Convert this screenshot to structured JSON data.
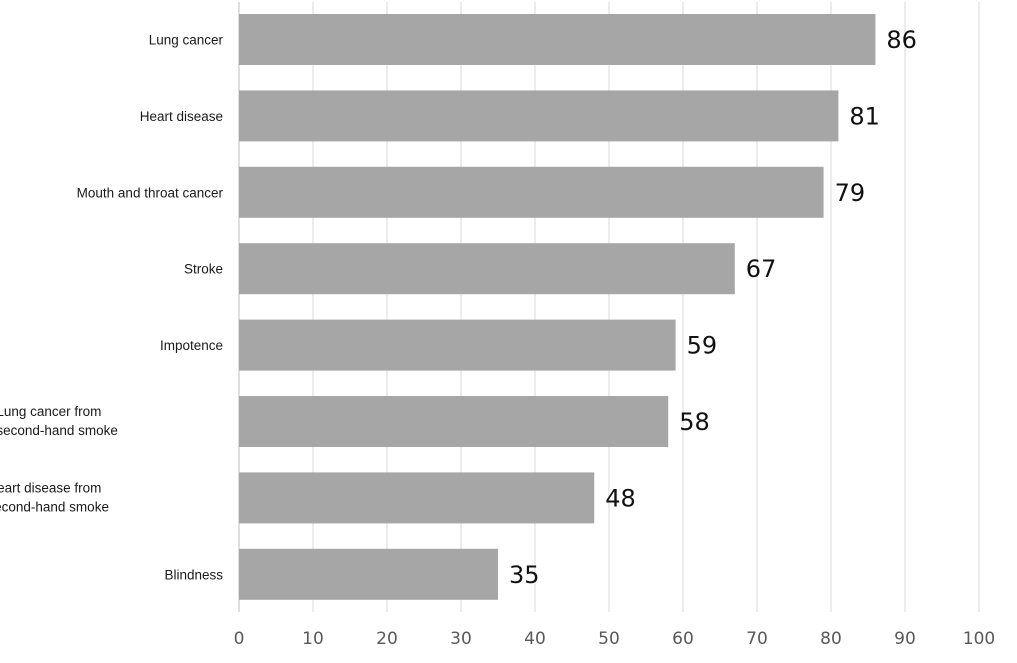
{
  "chart_data": {
    "type": "bar",
    "orientation": "horizontal",
    "categories": [
      "Lung cancer",
      "Heart disease",
      "Mouth and throat cancer",
      "Stroke",
      "Impotence",
      "Lung cancer from second-hand smoke",
      "Heart disease from second-hand smoke",
      "Blindness"
    ],
    "category_lines": [
      [
        "Lung cancer"
      ],
      [
        "Heart disease"
      ],
      [
        "Mouth and throat cancer"
      ],
      [
        "Stroke"
      ],
      [
        "Impotence"
      ],
      [
        "Lung cancer from",
        "second-hand smoke"
      ],
      [
        "Heart disease from",
        "second-hand smoke"
      ],
      [
        "Blindness"
      ]
    ],
    "values": [
      86,
      81,
      79,
      67,
      59,
      58,
      48,
      35
    ],
    "title": "",
    "xlabel": "",
    "ylabel": "",
    "xlim": [
      0,
      100
    ],
    "x_ticks": [
      0,
      10,
      20,
      30,
      40,
      50,
      60,
      70,
      80,
      90,
      100
    ],
    "grid": true,
    "legend": "none",
    "data_labels": true,
    "colors": {
      "bar": "#a6a6a6",
      "grid": "#d9d9d9",
      "tick_text": "#595959",
      "label_text": "#1a1a1a"
    }
  }
}
